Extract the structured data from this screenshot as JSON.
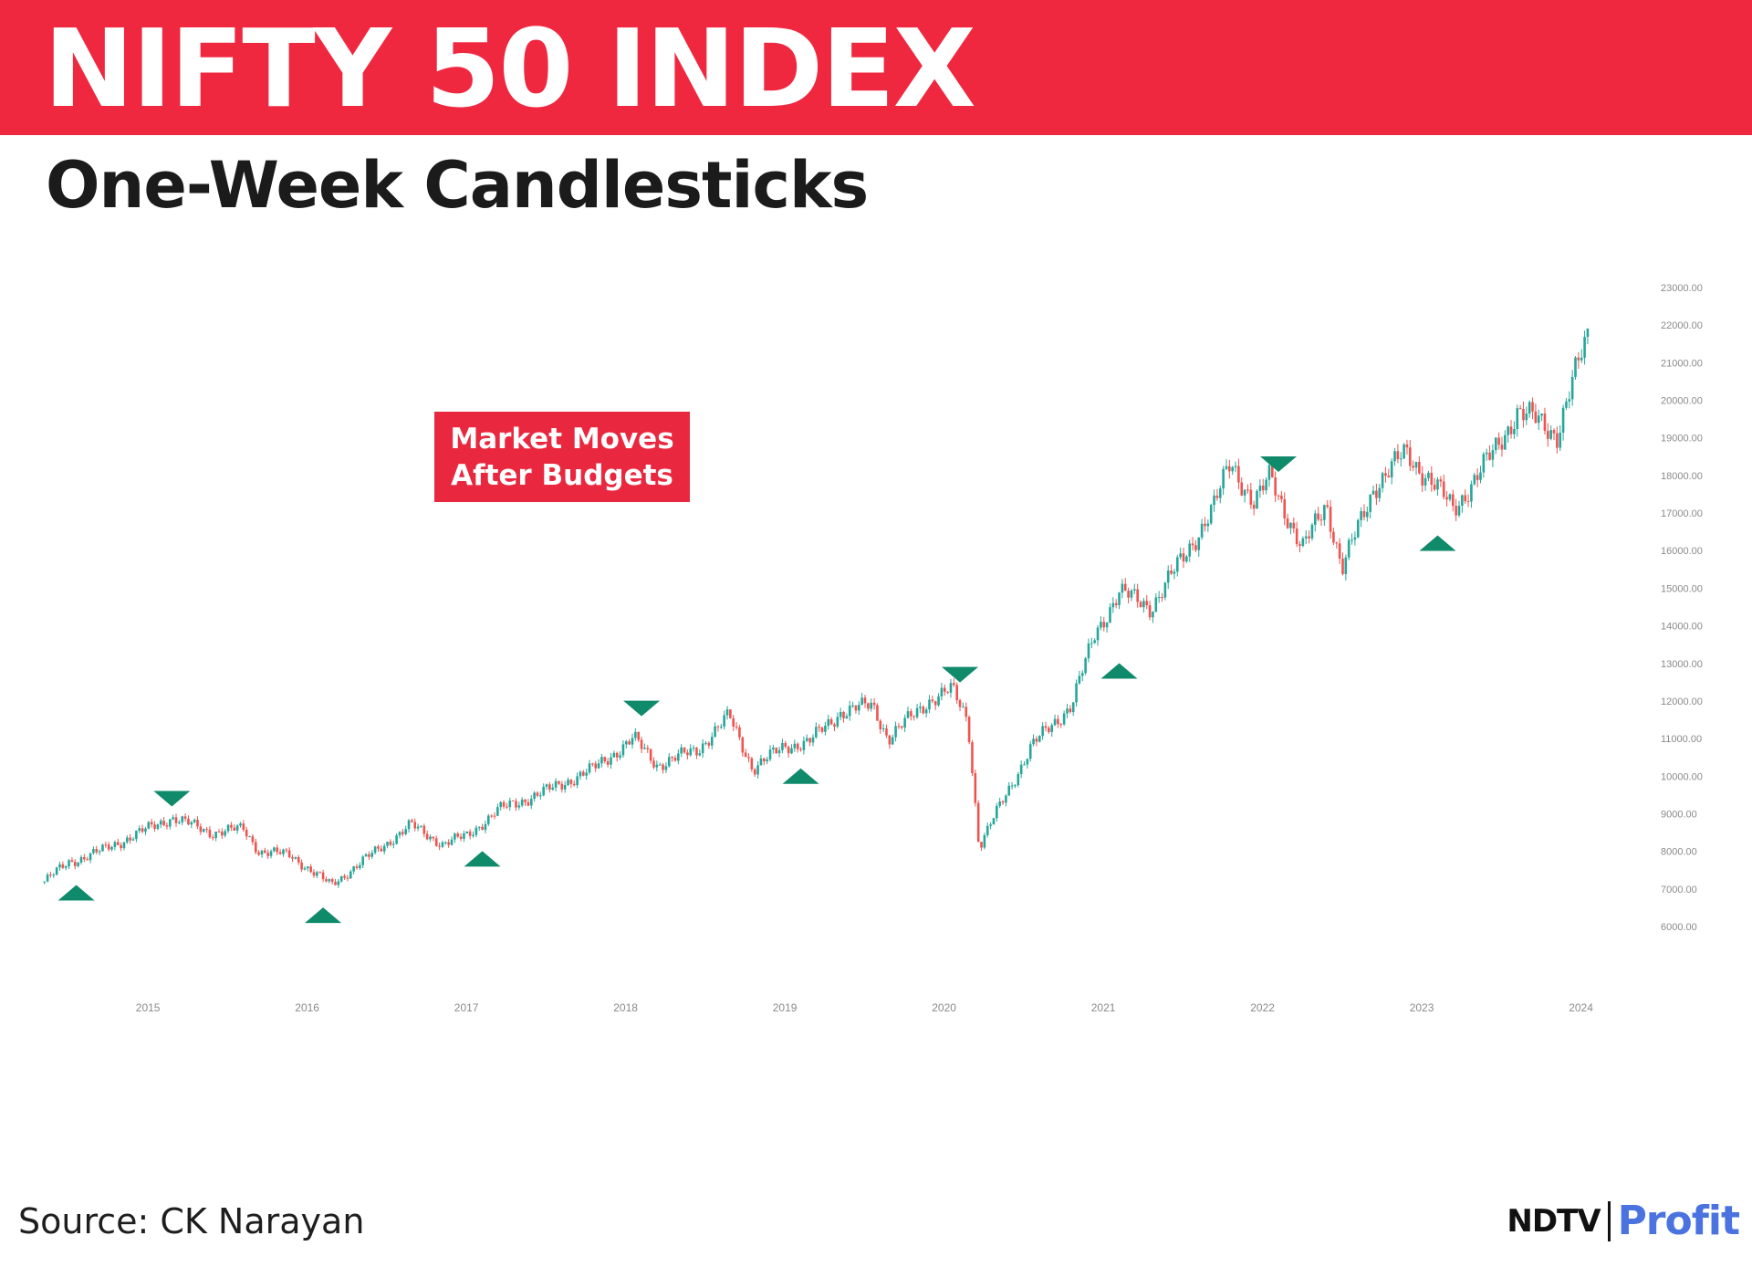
{
  "header": {
    "title": "NIFTY 50 INDEX",
    "subtitle": "One-Week Candlesticks"
  },
  "callout": {
    "line1": "Market Moves",
    "line2": "After Budgets"
  },
  "footer": {
    "source": "Source: CK Narayan",
    "logo_ndtv": "NDTV",
    "logo_profit": "Profit"
  },
  "colors": {
    "banner": "#ef2840",
    "up_candle": "#26a69a",
    "down_candle": "#ef5350",
    "marker": "#0f8a6a",
    "logo_profit": "#4a73e0"
  },
  "chart_data": {
    "type": "candlestick",
    "title": "NIFTY 50 INDEX",
    "subtitle": "One-Week Candlesticks",
    "x_tick_labels": [
      "2015",
      "2016",
      "2017",
      "2018",
      "2019",
      "2020",
      "2021",
      "2022",
      "2023",
      "2024"
    ],
    "y_tick_labels": [
      "23000.00",
      "22000.00",
      "21000.00",
      "20000.00",
      "19000.00",
      "18000.00",
      "17000.00",
      "16000.00",
      "15000.00",
      "14000.00",
      "13000.00",
      "12000.00",
      "11000.00",
      "10000.00",
      "9000.00",
      "8000.00",
      "7000.00",
      "6000.00"
    ],
    "ylim": [
      6000,
      23000
    ],
    "xlim": [
      2014.3,
      2024.1
    ],
    "price_path": [
      {
        "x": 2014.35,
        "y": 7200
      },
      {
        "x": 2014.5,
        "y": 7700
      },
      {
        "x": 2014.7,
        "y": 8000
      },
      {
        "x": 2014.95,
        "y": 8500
      },
      {
        "x": 2015.15,
        "y": 8900
      },
      {
        "x": 2015.4,
        "y": 8500
      },
      {
        "x": 2015.6,
        "y": 8600
      },
      {
        "x": 2015.7,
        "y": 8000
      },
      {
        "x": 2015.9,
        "y": 7900
      },
      {
        "x": 2016.05,
        "y": 7400
      },
      {
        "x": 2016.15,
        "y": 7100
      },
      {
        "x": 2016.4,
        "y": 7900
      },
      {
        "x": 2016.65,
        "y": 8700
      },
      {
        "x": 2016.85,
        "y": 8200
      },
      {
        "x": 2017.0,
        "y": 8400
      },
      {
        "x": 2017.2,
        "y": 9100
      },
      {
        "x": 2017.5,
        "y": 9600
      },
      {
        "x": 2017.8,
        "y": 10200
      },
      {
        "x": 2018.05,
        "y": 11000
      },
      {
        "x": 2018.2,
        "y": 10300
      },
      {
        "x": 2018.45,
        "y": 10700
      },
      {
        "x": 2018.65,
        "y": 11600
      },
      {
        "x": 2018.8,
        "y": 10200
      },
      {
        "x": 2019.0,
        "y": 10800
      },
      {
        "x": 2019.15,
        "y": 10900
      },
      {
        "x": 2019.35,
        "y": 11700
      },
      {
        "x": 2019.55,
        "y": 11900
      },
      {
        "x": 2019.65,
        "y": 11000
      },
      {
        "x": 2019.9,
        "y": 12000
      },
      {
        "x": 2020.05,
        "y": 12300
      },
      {
        "x": 2020.15,
        "y": 11500
      },
      {
        "x": 2020.22,
        "y": 8100
      },
      {
        "x": 2020.35,
        "y": 9200
      },
      {
        "x": 2020.55,
        "y": 10800
      },
      {
        "x": 2020.8,
        "y": 11900
      },
      {
        "x": 2020.95,
        "y": 13800
      },
      {
        "x": 2021.1,
        "y": 14900
      },
      {
        "x": 2021.3,
        "y": 14500
      },
      {
        "x": 2021.5,
        "y": 15800
      },
      {
        "x": 2021.7,
        "y": 17200
      },
      {
        "x": 2021.8,
        "y": 18400
      },
      {
        "x": 2021.95,
        "y": 17200
      },
      {
        "x": 2022.05,
        "y": 18000
      },
      {
        "x": 2022.15,
        "y": 17000
      },
      {
        "x": 2022.25,
        "y": 16000
      },
      {
        "x": 2022.4,
        "y": 17300
      },
      {
        "x": 2022.5,
        "y": 15500
      },
      {
        "x": 2022.7,
        "y": 17700
      },
      {
        "x": 2022.9,
        "y": 18600
      },
      {
        "x": 2023.05,
        "y": 17900
      },
      {
        "x": 2023.2,
        "y": 17100
      },
      {
        "x": 2023.45,
        "y": 18600
      },
      {
        "x": 2023.6,
        "y": 19700
      },
      {
        "x": 2023.75,
        "y": 19400
      },
      {
        "x": 2023.85,
        "y": 19100
      },
      {
        "x": 2023.95,
        "y": 20500
      },
      {
        "x": 2024.05,
        "y": 21800
      }
    ],
    "budget_markers": [
      {
        "x": 2014.55,
        "y": 6900,
        "direction": "up"
      },
      {
        "x": 2015.15,
        "y": 9400,
        "direction": "down"
      },
      {
        "x": 2016.1,
        "y": 6300,
        "direction": "up"
      },
      {
        "x": 2017.1,
        "y": 7800,
        "direction": "up"
      },
      {
        "x": 2018.1,
        "y": 11800,
        "direction": "down"
      },
      {
        "x": 2019.1,
        "y": 10000,
        "direction": "up"
      },
      {
        "x": 2020.1,
        "y": 12700,
        "direction": "down"
      },
      {
        "x": 2021.1,
        "y": 12800,
        "direction": "up"
      },
      {
        "x": 2022.1,
        "y": 18300,
        "direction": "down"
      },
      {
        "x": 2023.1,
        "y": 16200,
        "direction": "up"
      }
    ]
  }
}
